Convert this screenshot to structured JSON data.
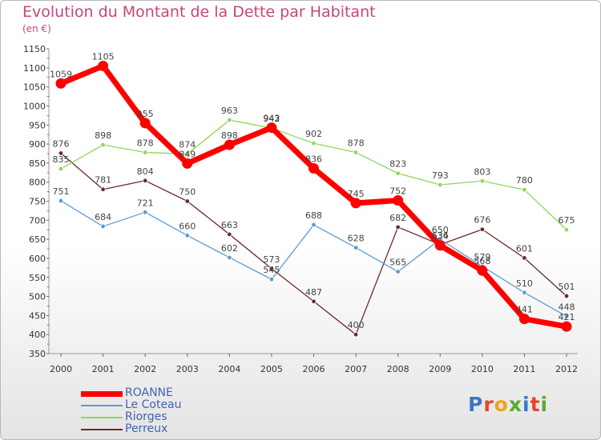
{
  "title": "Evolution du Montant de la Dette par Habitant",
  "subtitle": "(en €)",
  "logo": {
    "text": "Proxiti",
    "letter_colors": [
      "#3b77c7",
      "#e8452c",
      "#f0a21b",
      "#5aa934",
      "#3b77c7",
      "#e8452c",
      "#5aa934"
    ]
  },
  "chart_data": {
    "type": "line",
    "x": [
      "2000",
      "2001",
      "2002",
      "2003",
      "2004",
      "2005",
      "2006",
      "2007",
      "2008",
      "2009",
      "2010",
      "2011",
      "2012"
    ],
    "ylim": [
      350,
      1150
    ],
    "yticks": [
      350,
      400,
      450,
      500,
      550,
      600,
      650,
      700,
      750,
      800,
      850,
      900,
      950,
      1000,
      1050,
      1100,
      1150
    ],
    "grid": false,
    "legend": "bottom-left",
    "series": [
      {
        "name": "ROANNE",
        "color": "#ff0000",
        "values": [
          1059,
          1105,
          955,
          849,
          898,
          943,
          836,
          745,
          752,
          634,
          568,
          441,
          421
        ]
      },
      {
        "name": "Le Coteau",
        "color": "#5b9bd5",
        "values": [
          751,
          684,
          721,
          660,
          602,
          545,
          688,
          628,
          565,
          650,
          579,
          510,
          448
        ]
      },
      {
        "name": "Riorges",
        "color": "#8fd65a",
        "values": [
          835,
          898,
          878,
          874,
          963,
          942,
          902,
          878,
          823,
          793,
          803,
          780,
          675
        ]
      },
      {
        "name": "Perreux",
        "color": "#6b2a2a",
        "values": [
          876,
          781,
          804,
          750,
          663,
          573,
          487,
          400,
          682,
          636,
          676,
          601,
          501
        ]
      }
    ]
  }
}
